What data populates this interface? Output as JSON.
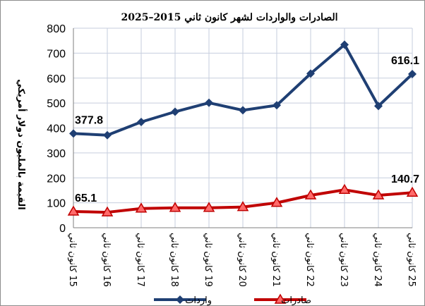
{
  "chart_data": {
    "type": "line",
    "title": "الصادرات والواردات لشهر كانون ثاني 2015–2025",
    "ylabel": "القيمة بالمليون دولار أمريكي",
    "xlabel": "",
    "ylim": [
      0,
      800
    ],
    "yticks": [
      0,
      100,
      200,
      300,
      400,
      500,
      600,
      700,
      800
    ],
    "grid": true,
    "legend_position": "bottom",
    "categories": [
      "15 كانون ثاني",
      "16 كانون ثاني",
      "17 كانون ثاني",
      "18 كانون ثاني",
      "19 كانون ثاني",
      "20 كانون ثاني",
      "21 كانون ثاني",
      "22 كانون ثاني",
      "23 كانون ثاني",
      "24 كانون ثاني",
      "25 كانون ثاني"
    ],
    "series": [
      {
        "name": "واردات",
        "color": "#1f3f73",
        "marker": "diamond",
        "values": [
          377.8,
          371,
          424,
          465,
          501,
          471,
          491,
          618,
          734,
          488,
          616.1
        ],
        "labels": [
          {
            "index": 0,
            "text": "377.8"
          },
          {
            "index": 10,
            "text": "616.1"
          }
        ]
      },
      {
        "name": "صادرات",
        "color": "#c00000",
        "marker": "triangle",
        "values": [
          65.1,
          62,
          77,
          80,
          80,
          83,
          100,
          130,
          152,
          130,
          140.7
        ],
        "labels": [
          {
            "index": 0,
            "text": "65.1"
          },
          {
            "index": 10,
            "text": "140.7"
          }
        ]
      }
    ]
  }
}
